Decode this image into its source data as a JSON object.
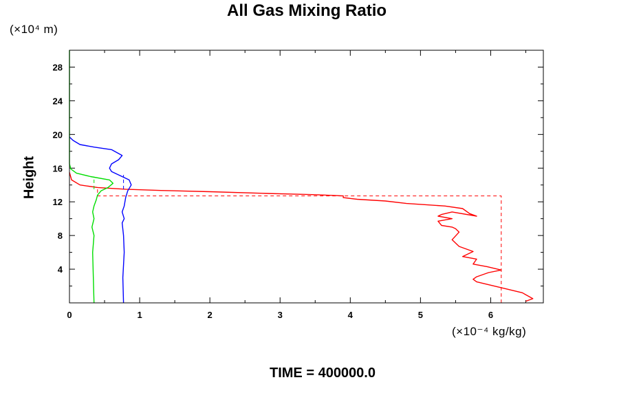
{
  "chart_data": {
    "type": "line",
    "title": "All Gas Mixing Ratio",
    "xlabel": "",
    "ylabel": "Height",
    "x_unit": "(×10⁻⁴ kg/kg)",
    "y_unit": "(×10⁴ m)",
    "footer": "TIME = 400000.0",
    "xlim": [
      0,
      6.75
    ],
    "ylim": [
      0,
      30
    ],
    "x_ticks": [
      "0",
      "1",
      "2",
      "3",
      "4",
      "5",
      "6"
    ],
    "y_ticks": [
      "4",
      "8",
      "12",
      "16",
      "20",
      "24",
      "28"
    ],
    "series": [
      {
        "color": "#ff0000",
        "style": "solid",
        "points": [
          [
            6.5,
            0.2
          ],
          [
            6.6,
            0.5
          ],
          [
            6.45,
            1.2
          ],
          [
            6.2,
            1.7
          ],
          [
            6.0,
            2.1
          ],
          [
            5.8,
            2.5
          ],
          [
            5.75,
            2.8
          ],
          [
            5.8,
            3.1
          ],
          [
            5.97,
            3.6
          ],
          [
            6.15,
            3.9
          ],
          [
            5.95,
            4.3
          ],
          [
            5.75,
            4.6
          ],
          [
            5.8,
            5.2
          ],
          [
            5.6,
            5.5
          ],
          [
            5.75,
            6.1
          ],
          [
            5.55,
            6.7
          ],
          [
            5.45,
            7.5
          ],
          [
            5.55,
            8.4
          ],
          [
            5.5,
            8.8
          ],
          [
            5.45,
            9.0
          ],
          [
            5.3,
            9.2
          ],
          [
            5.25,
            9.7
          ],
          [
            5.45,
            10.0
          ],
          [
            5.25,
            10.3
          ],
          [
            5.3,
            10.5
          ],
          [
            5.45,
            10.8
          ],
          [
            5.8,
            10.3
          ],
          [
            5.7,
            10.6
          ],
          [
            5.6,
            11.2
          ],
          [
            5.35,
            11.5
          ],
          [
            4.8,
            11.8
          ],
          [
            4.5,
            12.1
          ],
          [
            4.1,
            12.3
          ],
          [
            3.9,
            12.5
          ],
          [
            3.9,
            12.7
          ],
          [
            3.5,
            12.85
          ],
          [
            2.8,
            13.0
          ],
          [
            2.0,
            13.2
          ],
          [
            1.3,
            13.35
          ],
          [
            0.8,
            13.5
          ],
          [
            0.4,
            13.7
          ],
          [
            0.15,
            14.0
          ],
          [
            0.03,
            14.6
          ],
          [
            0.0,
            15.5
          ]
        ]
      },
      {
        "color": "#ff0000",
        "style": "dashed",
        "points": [
          [
            6.15,
            0.0
          ],
          [
            6.15,
            12.7
          ],
          [
            0.4,
            12.7
          ],
          [
            0.4,
            13.8
          ]
        ]
      },
      {
        "color": "#0000ff",
        "style": "solid",
        "points": [
          [
            0.77,
            0.0
          ],
          [
            0.76,
            3.0
          ],
          [
            0.78,
            6.0
          ],
          [
            0.77,
            8.0
          ],
          [
            0.75,
            9.5
          ],
          [
            0.78,
            10.0
          ],
          [
            0.75,
            10.8
          ],
          [
            0.78,
            11.5
          ],
          [
            0.8,
            12.5
          ],
          [
            0.83,
            13.3
          ],
          [
            0.88,
            14.0
          ],
          [
            0.85,
            14.6
          ],
          [
            0.7,
            15.2
          ],
          [
            0.6,
            15.6
          ],
          [
            0.57,
            16.0
          ],
          [
            0.6,
            16.5
          ],
          [
            0.7,
            17.0
          ],
          [
            0.75,
            17.5
          ],
          [
            0.6,
            18.2
          ],
          [
            0.35,
            18.5
          ],
          [
            0.15,
            18.8
          ],
          [
            0.05,
            19.3
          ],
          [
            0.0,
            19.7
          ]
        ]
      },
      {
        "color": "#0000ff",
        "style": "dashed",
        "points": [
          [
            0.77,
            13.5
          ],
          [
            0.77,
            15.2
          ]
        ]
      },
      {
        "color": "#00dd00",
        "style": "solid",
        "points": [
          [
            0.35,
            0.0
          ],
          [
            0.34,
            3.0
          ],
          [
            0.33,
            6.0
          ],
          [
            0.35,
            8.0
          ],
          [
            0.32,
            9.0
          ],
          [
            0.35,
            10.0
          ],
          [
            0.33,
            10.8
          ],
          [
            0.35,
            11.5
          ],
          [
            0.38,
            12.2
          ],
          [
            0.4,
            12.8
          ],
          [
            0.45,
            13.3
          ],
          [
            0.55,
            13.7
          ],
          [
            0.62,
            14.2
          ],
          [
            0.57,
            14.6
          ],
          [
            0.3,
            15.0
          ],
          [
            0.1,
            15.4
          ],
          [
            0.02,
            15.9
          ],
          [
            0.0,
            16.5
          ],
          [
            0.0,
            30.0
          ]
        ]
      },
      {
        "color": "#00dd00",
        "style": "dashed",
        "points": [
          [
            0.35,
            13.5
          ],
          [
            0.35,
            15.0
          ]
        ]
      }
    ]
  }
}
